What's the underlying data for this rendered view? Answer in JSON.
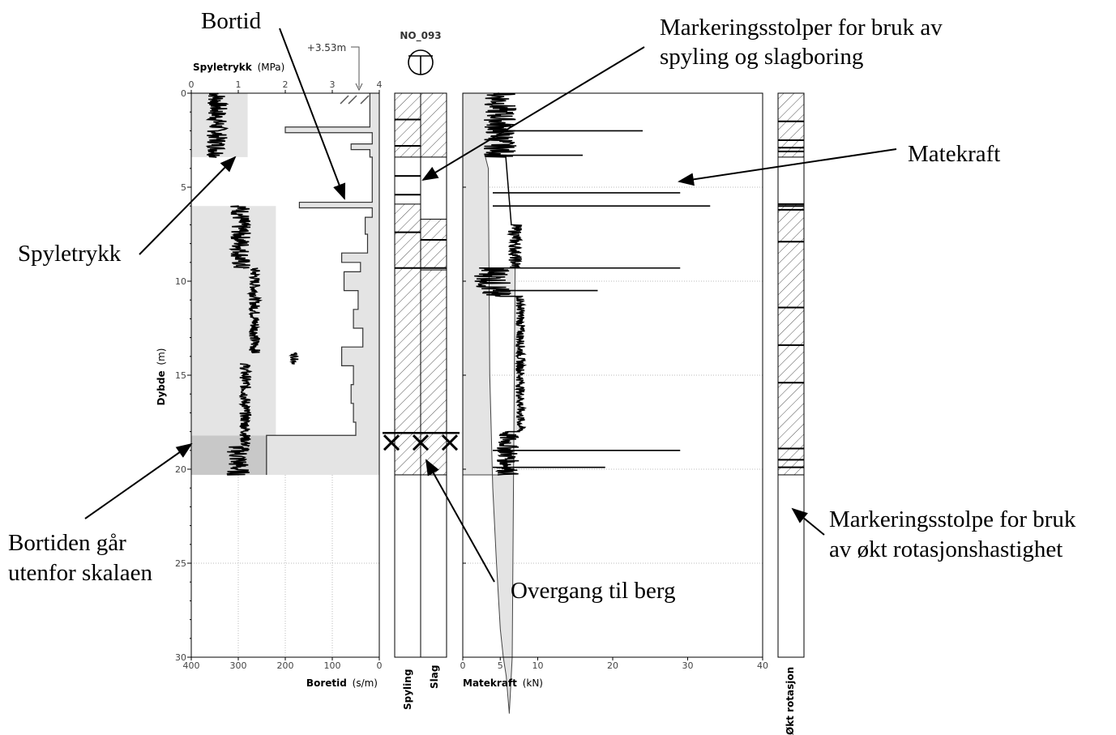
{
  "chart_data": {
    "type": "line",
    "station": "NO_093",
    "top_offset_label": "+3.53m",
    "depth_axis": {
      "label_bold": "Dybde",
      "label_unit": "(m)",
      "range": [
        0,
        30
      ],
      "ticks": [
        "0",
        "5",
        "10",
        "15",
        "20",
        "25",
        "30"
      ],
      "end_of_hole": 20.3,
      "rock_transition": 18.2
    },
    "spyletrykk": {
      "label_bold": "Spyletrykk",
      "label_unit": "(MPa)",
      "range": [
        0,
        4
      ],
      "ticks": [
        "0",
        "1",
        "2",
        "3",
        "4"
      ],
      "segments": [
        {
          "from": 0,
          "to": 3.4,
          "mean": 0.55,
          "jitter": 0.22
        },
        {
          "from": 6.0,
          "to": 9.3,
          "mean": 1.05,
          "jitter": 0.22
        },
        {
          "from": 9.3,
          "to": 13.8,
          "mean": 1.35,
          "jitter": 0.12
        },
        {
          "from": 13.8,
          "to": 14.4,
          "mean": 2.2,
          "jitter": 0.08
        },
        {
          "from": 14.4,
          "to": 18.8,
          "mean": 1.15,
          "jitter": 0.12
        },
        {
          "from": 18.8,
          "to": 20.3,
          "mean": 1.0,
          "jitter": 0.25
        }
      ]
    },
    "boretid": {
      "label_bold": "Boretid",
      "label_unit": "(s/m)",
      "range": [
        400,
        0
      ],
      "ticks": [
        "400",
        "300",
        "200",
        "100",
        "0"
      ],
      "steps": [
        [
          0.2,
          20
        ],
        [
          1.8,
          200
        ],
        [
          2.1,
          15
        ],
        [
          2.7,
          60
        ],
        [
          3.0,
          20
        ],
        [
          3.4,
          15
        ],
        [
          5.8,
          170
        ],
        [
          6.1,
          15
        ],
        [
          6.6,
          30
        ],
        [
          7.5,
          25
        ],
        [
          8.5,
          80
        ],
        [
          9.0,
          40
        ],
        [
          9.5,
          75
        ],
        [
          10.5,
          45
        ],
        [
          11.5,
          55
        ],
        [
          12.5,
          35
        ],
        [
          13.5,
          80
        ],
        [
          14.5,
          55
        ],
        [
          15.5,
          60
        ],
        [
          16.5,
          55
        ],
        [
          17.5,
          50
        ],
        [
          18.2,
          240
        ],
        [
          20.3,
          240
        ]
      ]
    },
    "spyling": {
      "label": "Spyling",
      "bands": [
        [
          0.0,
          3.4
        ],
        [
          5.9,
          9.3
        ],
        [
          9.3,
          20.3
        ]
      ],
      "lines": [
        1.4,
        2.8,
        4.4,
        5.4,
        7.4,
        9.3
      ]
    },
    "slag": {
      "label": "Slag",
      "bands": [
        [
          0.0,
          3.4
        ],
        [
          6.7,
          9.3
        ],
        [
          9.4,
          20.3
        ]
      ],
      "lines": [
        7.8,
        9.3
      ]
    },
    "matekraft": {
      "label_bold": "Matekraft",
      "label_unit": "(kN)",
      "range": [
        0,
        40
      ],
      "ticks": [
        "0",
        "5",
        "10",
        "20",
        "30",
        "40"
      ],
      "segments": [
        {
          "from": 0,
          "to": 3.4,
          "mean": 5.0,
          "jitter": 2.2
        },
        {
          "from": 7.0,
          "to": 9.3,
          "mean": 7.0,
          "jitter": 0.9
        },
        {
          "from": 9.3,
          "to": 10.8,
          "mean": 4.0,
          "jitter": 2.5
        },
        {
          "from": 10.8,
          "to": 18.0,
          "mean": 7.7,
          "jitter": 0.6
        },
        {
          "from": 18.0,
          "to": 20.3,
          "mean": 6.0,
          "jitter": 1.5
        }
      ],
      "envelope": [
        [
          3.4,
          4.0
        ],
        [
          3.6,
          15.0
        ],
        [
          4.0,
          21.0
        ],
        [
          4.5,
          25.0
        ],
        [
          5.0,
          28.5
        ],
        [
          5.4,
          30.0
        ],
        [
          5.8,
          31.0
        ],
        [
          6.2,
          33.0
        ],
        [
          6.6,
          30.0
        ],
        [
          7.0,
          8.0
        ]
      ],
      "spikes": [
        [
          2.0,
          24.0
        ],
        [
          3.3,
          16.0
        ],
        [
          5.3,
          29.0
        ],
        [
          6.0,
          33.0
        ],
        [
          9.3,
          29.0
        ],
        [
          10.5,
          18.0
        ],
        [
          19.0,
          29.0
        ],
        [
          19.9,
          19.0
        ]
      ]
    },
    "okt_rotasjon": {
      "label": "Økt rotasjon",
      "bands": [
        [
          0.0,
          3.4
        ],
        [
          5.9,
          20.3
        ]
      ],
      "lines": [
        1.5,
        2.5,
        2.9,
        3.1,
        5.9,
        6.0,
        6.2,
        7.9,
        11.4,
        13.4,
        15.4,
        18.9,
        19.5,
        19.9
      ]
    }
  },
  "annotations": {
    "bortid": "Bortid",
    "markeringsstolper_line1": "Markeringsstolper for bruk av",
    "markeringsstolper_line2": "spyling og slagboring",
    "matekraft": "Matekraft",
    "spyletrykk": "Spyletrykk",
    "bortiden_line1": "Bortiden går",
    "bortiden_line2": "utenfor skalaen",
    "overgang": "Overgang til berg",
    "rotasjon_line1": "Markeringsstolpe for bruk",
    "rotasjon_line2": "av økt rotasjonshastighet"
  }
}
